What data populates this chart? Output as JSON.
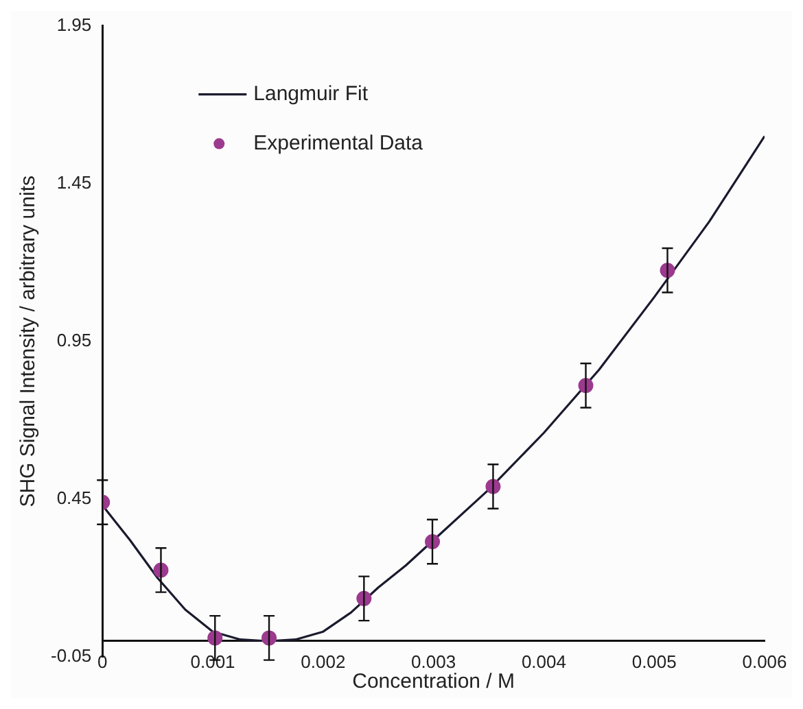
{
  "chart_data": {
    "type": "scatter",
    "xlabel": "Concentration / M",
    "ylabel": "SHG Signal Intensity / arbitrary units",
    "xlim": [
      0,
      0.006
    ],
    "xticks": [
      0,
      0.001,
      0.002,
      0.003,
      0.004,
      0.005,
      0.006
    ],
    "ylim": [
      -0.05,
      1.95
    ],
    "yticks": [
      -0.05,
      0.45,
      0.95,
      1.45,
      1.95
    ],
    "grid": false,
    "legend": "top left",
    "marker": "circle",
    "series": [
      {
        "name": "Langmuir Fit",
        "type": "line",
        "color": "#1a1a2e",
        "line_style": "solid",
        "marker": "none",
        "x": [
          0,
          0.00025,
          0.0005,
          0.00075,
          0.001,
          0.00125,
          0.0015,
          0.00175,
          0.002,
          0.00225,
          0.0025,
          0.00275,
          0.003,
          0.0035,
          0.004,
          0.0045,
          0.005,
          0.0055,
          0.006
        ],
        "values": [
          0.43,
          0.32,
          0.2,
          0.1,
          0.03,
          0.005,
          0.0,
          0.005,
          0.03,
          0.09,
          0.17,
          0.24,
          0.32,
          0.48,
          0.66,
          0.86,
          1.09,
          1.33,
          1.6
        ]
      },
      {
        "name": "Experimental Data",
        "color": "#9b3a8e",
        "x": [
          0,
          0.00053,
          0.00102,
          0.00151,
          0.00237,
          0.00299,
          0.00354,
          0.00438,
          0.00512
        ],
        "values": [
          0.44,
          0.225,
          0.01,
          0.01,
          0.135,
          0.315,
          0.49,
          0.81,
          1.175
        ],
        "errors": [
          0.07,
          0.07,
          0.07,
          0.07,
          0.07,
          0.07,
          0.07,
          0.07,
          0.07
        ]
      }
    ]
  }
}
